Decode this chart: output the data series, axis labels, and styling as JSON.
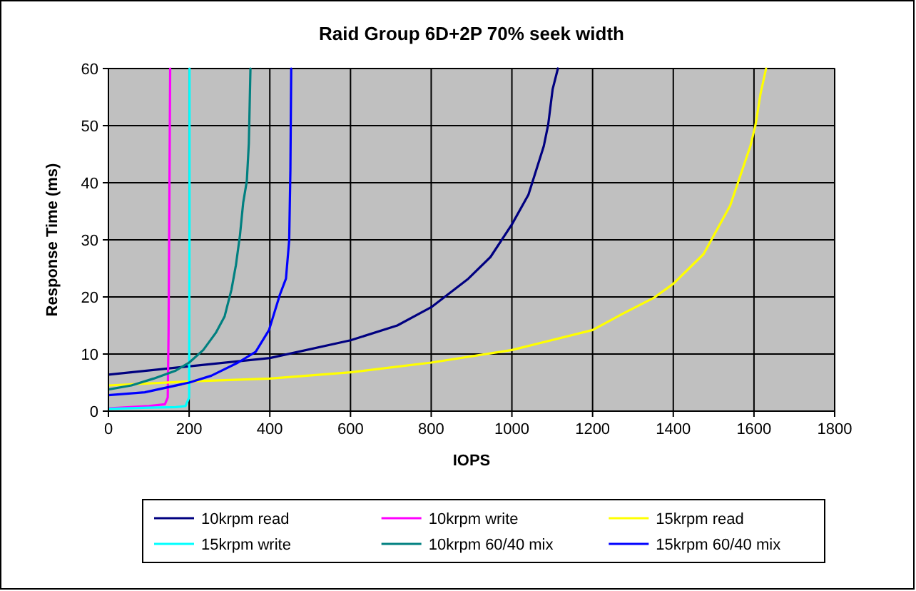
{
  "chart_data": {
    "type": "line",
    "title": "Raid Group 6D+2P 70% seek width",
    "xlabel": "IOPS",
    "ylabel": "Response Time (ms)",
    "xlim": [
      0,
      1800
    ],
    "xticks": [
      0,
      200,
      400,
      600,
      800,
      1000,
      1200,
      1400,
      1600,
      1800
    ],
    "ylim": [
      0,
      60
    ],
    "yticks": [
      0,
      10,
      20,
      30,
      40,
      50,
      60
    ],
    "grid": true,
    "legend": "bottom",
    "marker": "none",
    "line_style": "solid",
    "series": [
      {
        "name": "10krpm read",
        "color": "#000080",
        "x": [
          0,
          400,
          600,
          716,
          800,
          892,
          947,
          1000,
          1041,
          1079,
          1090,
          1101,
          1114
        ],
        "values": [
          6.4,
          9.3,
          12.4,
          15,
          18.2,
          23.2,
          27,
          32.7,
          37.9,
          46.4,
          50.2,
          56.4,
          60
        ]
      },
      {
        "name": "10krpm write",
        "color": "#ff00ff",
        "x": [
          0,
          101,
          140,
          147,
          149,
          153
        ],
        "values": [
          0.5,
          0.9,
          1.2,
          2.4,
          13.7,
          60
        ]
      },
      {
        "name": "15krpm read",
        "color": "#ffff00",
        "x": [
          0,
          200,
          400,
          600,
          800,
          1000,
          1200,
          1276,
          1353,
          1400,
          1475,
          1541,
          1591,
          1604,
          1616,
          1630
        ],
        "values": [
          4.5,
          5.2,
          5.7,
          6.8,
          8.5,
          10.7,
          14.2,
          17.1,
          19.9,
          22.3,
          27.5,
          36,
          46.4,
          50.2,
          55.5,
          60
        ]
      },
      {
        "name": "15krpm write",
        "color": "#00ffff",
        "x": [
          0,
          100,
          167,
          191,
          200,
          201,
          201
        ],
        "values": [
          0.4,
          0.6,
          0.7,
          0.9,
          2.4,
          33,
          60
        ]
      },
      {
        "name": "10krpm 60/40 mix",
        "color": "#008080",
        "x": [
          0,
          57,
          112,
          167,
          200,
          235,
          266,
          288,
          305,
          316,
          326,
          334,
          343,
          348,
          352
        ],
        "values": [
          3.8,
          4.5,
          5.7,
          7.1,
          8.5,
          10.7,
          13.7,
          16.6,
          21.3,
          25.6,
          30.8,
          36.5,
          40.3,
          46.9,
          60
        ]
      },
      {
        "name": "15krpm 60/40 mix",
        "color": "#0000ff",
        "x": [
          0,
          90,
          200,
          255,
          321,
          365,
          398,
          425,
          440,
          448,
          451,
          453
        ],
        "values": [
          2.8,
          3.3,
          5,
          6.2,
          8.5,
          10.4,
          14.2,
          20.4,
          23.2,
          29.9,
          42.2,
          60
        ]
      }
    ]
  }
}
